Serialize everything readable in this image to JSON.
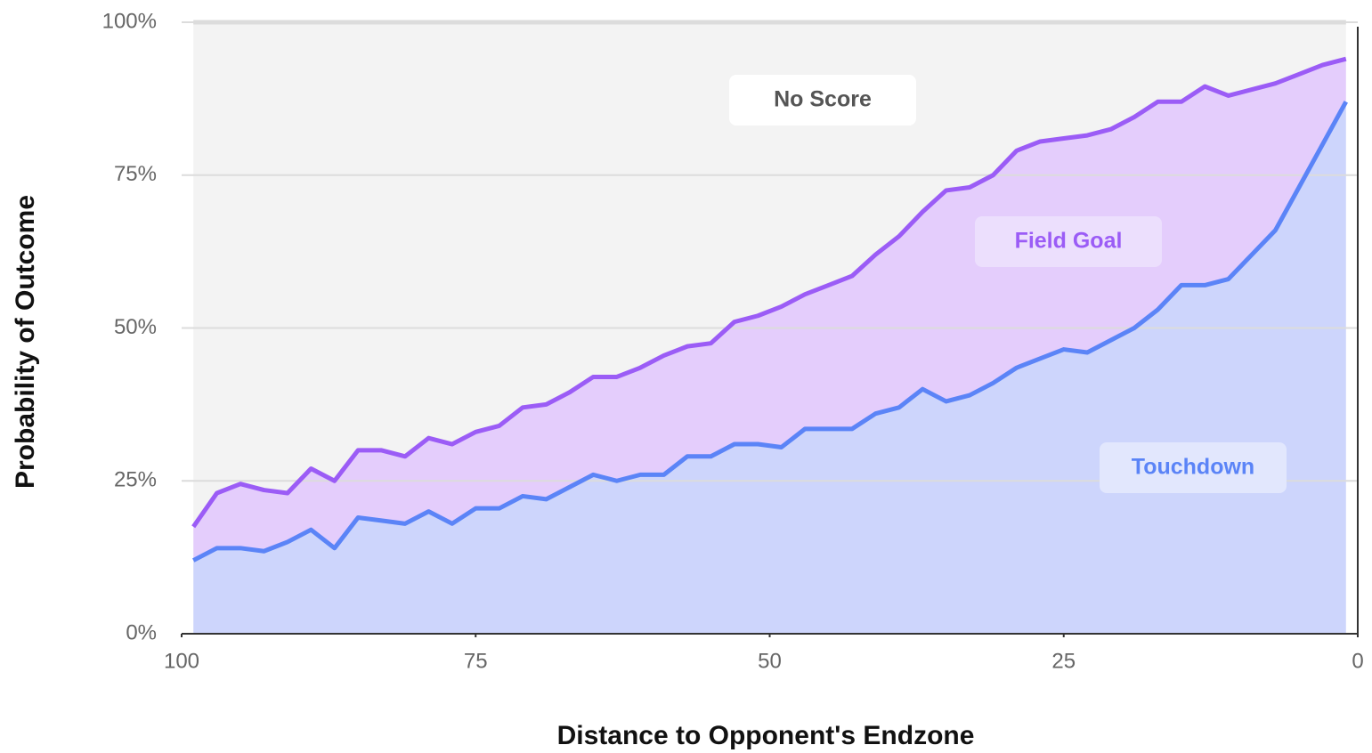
{
  "chart_data": {
    "type": "stacked_area",
    "xlabel": "Distance to Opponent's Endzone",
    "ylabel": "Probability of Outcome",
    "x": [
      99,
      97,
      95,
      93,
      91,
      89,
      87,
      85,
      83,
      81,
      79,
      77,
      75,
      73,
      71,
      69,
      67,
      65,
      63,
      61,
      59,
      57,
      55,
      53,
      51,
      49,
      47,
      45,
      43,
      41,
      39,
      37,
      35,
      33,
      31,
      29,
      27,
      25,
      23,
      21,
      19,
      17,
      15,
      13,
      11,
      9,
      7,
      5,
      3,
      1
    ],
    "series": [
      {
        "name": "Touchdown",
        "color": "#5b84f7",
        "fill": "#cdd5fc",
        "values": [
          12,
          14,
          14,
          13.5,
          15,
          17,
          14,
          19,
          18.5,
          18,
          20,
          18,
          20.5,
          20.5,
          22.5,
          22,
          24,
          26,
          25,
          26,
          26,
          29,
          29,
          31,
          31,
          30.5,
          33.5,
          33.5,
          33.5,
          36,
          37,
          40,
          38,
          39,
          41,
          43.5,
          45,
          46.5,
          46,
          48,
          50,
          53,
          57,
          57,
          58,
          62,
          66,
          73,
          80,
          87
        ]
      },
      {
        "name": "Field Goal",
        "color": "#9b5cf6",
        "fill": "#e4cdfc",
        "values": [
          5.5,
          9,
          10.5,
          10,
          8,
          10,
          11,
          11,
          11.5,
          11,
          12,
          13,
          12.5,
          13.5,
          14.5,
          15.5,
          15.5,
          16,
          17,
          17.5,
          19.5,
          18,
          18.5,
          20,
          21,
          23,
          22,
          23.5,
          25,
          26,
          28,
          29,
          34.5,
          34,
          34,
          35.5,
          35.5,
          34.5,
          35.5,
          34.5,
          34.5,
          34,
          30,
          32.5,
          30,
          27,
          24,
          18.5,
          13,
          7
        ]
      },
      {
        "name": "No Score",
        "color": "#dcdcdc",
        "fill": "#f3f3f3",
        "values": [
          82.5,
          77,
          75.5,
          76.5,
          77,
          73,
          75,
          70,
          70,
          71,
          68,
          69,
          67,
          66,
          63,
          62.5,
          60.5,
          58,
          58,
          56.5,
          54.5,
          53,
          52.5,
          49,
          48,
          46.5,
          44.5,
          43,
          41.5,
          38,
          35,
          31,
          27.5,
          27,
          25,
          21,
          19.5,
          19,
          18.5,
          17.5,
          15.5,
          13,
          13,
          10.5,
          12,
          11,
          10,
          8.5,
          7,
          6
        ]
      }
    ],
    "xlim": [
      100,
      0
    ],
    "xticks": [
      100,
      75,
      50,
      25,
      0
    ],
    "ylim": [
      0,
      100
    ],
    "yticks": [
      {
        "value": 0,
        "label": "0%"
      },
      {
        "value": 25,
        "label": "25%"
      },
      {
        "value": 50,
        "label": "50%"
      },
      {
        "value": 75,
        "label": "75%"
      },
      {
        "value": 100,
        "label": "100%"
      }
    ],
    "grid": true
  }
}
